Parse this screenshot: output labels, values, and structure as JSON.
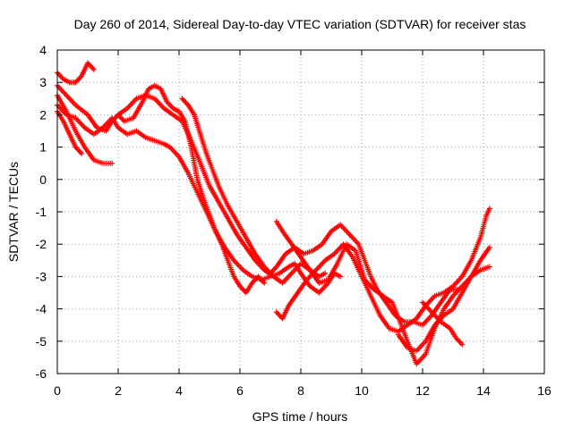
{
  "chart_data": {
    "type": "scatter",
    "title": "Day 260 of 2014, Sidereal Day-to-day VTEC variation (SDTVAR) for receiver stas",
    "xlabel": "GPS time / hours",
    "ylabel": "SDTVAR / TECUs",
    "xlim": [
      0,
      16
    ],
    "ylim": [
      -6,
      4
    ],
    "x_ticks": [
      "0",
      "2",
      "4",
      "6",
      "8",
      "10",
      "12",
      "14",
      "16"
    ],
    "y_ticks": [
      "-6",
      "-5",
      "-4",
      "-3",
      "-2",
      "-1",
      "0",
      "1",
      "2",
      "3",
      "4"
    ],
    "grid": true,
    "legend": "none",
    "marker": "plus",
    "color": "#ff0000",
    "series": [
      {
        "points": [
          [
            0.0,
            2.1
          ],
          [
            0.2,
            1.8
          ],
          [
            0.4,
            1.4
          ],
          [
            0.6,
            1.0
          ],
          [
            0.8,
            0.8
          ]
        ]
      },
      {
        "points": [
          [
            0.0,
            2.6
          ],
          [
            0.3,
            2.1
          ],
          [
            0.6,
            1.5
          ],
          [
            0.9,
            1.0
          ],
          [
            1.2,
            0.6
          ],
          [
            1.5,
            0.5
          ],
          [
            1.8,
            0.5
          ]
        ]
      },
      {
        "points": [
          [
            0.0,
            3.3
          ],
          [
            0.2,
            3.1
          ],
          [
            0.4,
            3.0
          ],
          [
            0.6,
            3.0
          ],
          [
            0.8,
            3.2
          ],
          [
            1.0,
            3.6
          ],
          [
            1.2,
            3.4
          ]
        ]
      },
      {
        "points": [
          [
            0.0,
            2.9
          ],
          [
            0.3,
            2.6
          ],
          [
            0.6,
            2.3
          ],
          [
            1.0,
            2.0
          ],
          [
            1.3,
            1.6
          ],
          [
            1.6,
            1.5
          ],
          [
            1.8,
            1.8
          ],
          [
            2.0,
            2.0
          ],
          [
            2.2,
            1.8
          ],
          [
            2.5,
            1.9
          ],
          [
            2.8,
            2.4
          ],
          [
            3.0,
            2.8
          ],
          [
            3.2,
            2.9
          ],
          [
            3.4,
            2.8
          ],
          [
            3.6,
            2.4
          ],
          [
            3.8,
            2.2
          ],
          [
            4.0,
            2.1
          ],
          [
            4.2,
            1.8
          ],
          [
            4.4,
            1.0
          ],
          [
            4.6,
            0.0
          ],
          [
            4.8,
            -0.6
          ],
          [
            5.0,
            -1.1
          ],
          [
            5.2,
            -1.6
          ],
          [
            5.4,
            -2.0
          ],
          [
            5.6,
            -2.5
          ],
          [
            5.8,
            -3.0
          ],
          [
            6.0,
            -3.3
          ],
          [
            6.2,
            -3.5
          ],
          [
            6.4,
            -3.2
          ],
          [
            6.6,
            -3.0
          ],
          [
            6.8,
            -3.2
          ]
        ]
      },
      {
        "points": [
          [
            0.0,
            2.3
          ],
          [
            0.3,
            2.0
          ],
          [
            0.6,
            1.9
          ],
          [
            0.9,
            1.6
          ],
          [
            1.2,
            1.4
          ],
          [
            1.5,
            1.6
          ],
          [
            1.8,
            1.9
          ],
          [
            2.0,
            1.6
          ],
          [
            2.3,
            1.4
          ],
          [
            2.6,
            1.5
          ],
          [
            2.9,
            1.3
          ],
          [
            3.2,
            1.2
          ],
          [
            3.5,
            1.1
          ],
          [
            3.7,
            1.0
          ],
          [
            4.0,
            0.7
          ],
          [
            4.3,
            0.2
          ],
          [
            4.6,
            -0.4
          ],
          [
            4.9,
            -1.0
          ],
          [
            5.2,
            -1.6
          ],
          [
            5.5,
            -2.1
          ],
          [
            5.8,
            -2.5
          ],
          [
            6.1,
            -2.8
          ],
          [
            6.4,
            -3.0
          ],
          [
            6.7,
            -3.1
          ],
          [
            7.0,
            -3.0
          ],
          [
            7.3,
            -2.9
          ],
          [
            7.6,
            -2.7
          ],
          [
            7.8,
            -2.6
          ],
          [
            8.0,
            -2.9
          ],
          [
            8.3,
            -3.3
          ],
          [
            8.6,
            -3.5
          ],
          [
            8.9,
            -3.2
          ],
          [
            9.1,
            -2.9
          ],
          [
            9.3,
            -3.0
          ]
        ]
      },
      {
        "points": [
          [
            2.0,
            2.0
          ],
          [
            2.3,
            2.2
          ],
          [
            2.6,
            2.5
          ],
          [
            2.9,
            2.6
          ],
          [
            3.2,
            2.5
          ],
          [
            3.5,
            2.2
          ],
          [
            3.8,
            2.0
          ],
          [
            4.1,
            1.8
          ],
          [
            4.4,
            1.2
          ],
          [
            4.7,
            0.5
          ],
          [
            5.0,
            -0.2
          ],
          [
            5.3,
            -0.7
          ],
          [
            5.6,
            -1.2
          ],
          [
            5.9,
            -1.7
          ],
          [
            6.2,
            -2.1
          ],
          [
            6.5,
            -2.5
          ],
          [
            6.8,
            -2.8
          ],
          [
            7.1,
            -3.0
          ],
          [
            7.4,
            -3.2
          ],
          [
            7.7,
            -2.9
          ],
          [
            8.0,
            -2.6
          ],
          [
            8.3,
            -2.8
          ],
          [
            8.6,
            -3.0
          ],
          [
            8.8,
            -2.9
          ]
        ]
      },
      {
        "points": [
          [
            4.1,
            2.5
          ],
          [
            4.3,
            2.3
          ],
          [
            4.5,
            2.0
          ],
          [
            4.7,
            1.4
          ],
          [
            4.9,
            0.8
          ],
          [
            5.1,
            0.3
          ],
          [
            5.3,
            -0.2
          ],
          [
            5.6,
            -0.8
          ],
          [
            5.9,
            -1.3
          ],
          [
            6.2,
            -1.8
          ],
          [
            6.5,
            -2.3
          ],
          [
            6.8,
            -2.7
          ],
          [
            7.0,
            -2.9
          ],
          [
            7.2,
            -2.7
          ],
          [
            7.5,
            -2.3
          ],
          [
            7.8,
            -2.1
          ],
          [
            8.1,
            -2.3
          ],
          [
            8.4,
            -2.2
          ],
          [
            8.7,
            -2.0
          ],
          [
            9.0,
            -1.6
          ],
          [
            9.3,
            -1.4
          ],
          [
            9.6,
            -1.7
          ],
          [
            9.9,
            -2.0
          ],
          [
            10.1,
            -2.5
          ],
          [
            10.3,
            -3.0
          ],
          [
            10.5,
            -3.4
          ],
          [
            10.8,
            -3.8
          ],
          [
            11.1,
            -4.2
          ],
          [
            11.4,
            -4.4
          ],
          [
            11.7,
            -4.4
          ],
          [
            12.0,
            -4.5
          ],
          [
            12.3,
            -4.2
          ],
          [
            12.6,
            -3.8
          ],
          [
            12.9,
            -3.4
          ],
          [
            13.2,
            -3.4
          ]
        ]
      },
      {
        "points": [
          [
            7.2,
            -1.3
          ],
          [
            7.4,
            -1.6
          ],
          [
            7.7,
            -2.0
          ],
          [
            8.0,
            -2.4
          ],
          [
            8.3,
            -2.8
          ],
          [
            8.6,
            -3.2
          ],
          [
            8.9,
            -3.1
          ],
          [
            9.2,
            -2.6
          ],
          [
            9.5,
            -2.0
          ],
          [
            9.8,
            -2.2
          ],
          [
            10.1,
            -3.1
          ],
          [
            10.4,
            -3.4
          ],
          [
            10.7,
            -3.6
          ],
          [
            11.0,
            -3.8
          ],
          [
            11.3,
            -4.5
          ],
          [
            11.5,
            -5.0
          ],
          [
            11.8,
            -5.7
          ],
          [
            12.1,
            -5.4
          ],
          [
            12.4,
            -4.6
          ],
          [
            12.7,
            -4.0
          ],
          [
            13.0,
            -3.6
          ],
          [
            13.3,
            -3.3
          ],
          [
            13.6,
            -3.0
          ],
          [
            13.9,
            -2.8
          ],
          [
            14.2,
            -2.7
          ]
        ]
      },
      {
        "points": [
          [
            7.2,
            -4.1
          ],
          [
            7.4,
            -4.3
          ],
          [
            7.6,
            -3.9
          ],
          [
            7.9,
            -3.5
          ],
          [
            8.2,
            -3.1
          ],
          [
            8.5,
            -2.8
          ],
          [
            8.8,
            -2.5
          ],
          [
            9.1,
            -2.3
          ],
          [
            9.4,
            -2.0
          ],
          [
            9.7,
            -2.4
          ],
          [
            10.0,
            -3.0
          ],
          [
            10.3,
            -3.6
          ],
          [
            10.6,
            -4.2
          ],
          [
            10.9,
            -4.6
          ],
          [
            11.2,
            -4.7
          ],
          [
            11.5,
            -4.5
          ],
          [
            11.8,
            -4.3
          ],
          [
            12.1,
            -3.9
          ],
          [
            12.4,
            -3.6
          ],
          [
            12.7,
            -3.5
          ],
          [
            13.0,
            -3.3
          ],
          [
            13.3,
            -3.0
          ],
          [
            13.6,
            -2.5
          ],
          [
            13.9,
            -1.8
          ],
          [
            14.1,
            -1.1
          ],
          [
            14.2,
            -0.9
          ]
        ]
      },
      {
        "points": [
          [
            11.2,
            -4.8
          ],
          [
            11.5,
            -5.2
          ],
          [
            11.8,
            -5.3
          ],
          [
            12.1,
            -5.0
          ],
          [
            12.4,
            -4.5
          ],
          [
            12.7,
            -4.2
          ],
          [
            13.0,
            -4.0
          ],
          [
            13.3,
            -3.5
          ],
          [
            13.6,
            -3.0
          ],
          [
            13.9,
            -2.5
          ],
          [
            14.2,
            -2.1
          ]
        ]
      },
      {
        "points": [
          [
            12.0,
            -3.8
          ],
          [
            12.3,
            -4.1
          ],
          [
            12.6,
            -4.4
          ],
          [
            12.9,
            -4.6
          ],
          [
            13.1,
            -4.9
          ],
          [
            13.3,
            -5.1
          ]
        ]
      }
    ]
  }
}
